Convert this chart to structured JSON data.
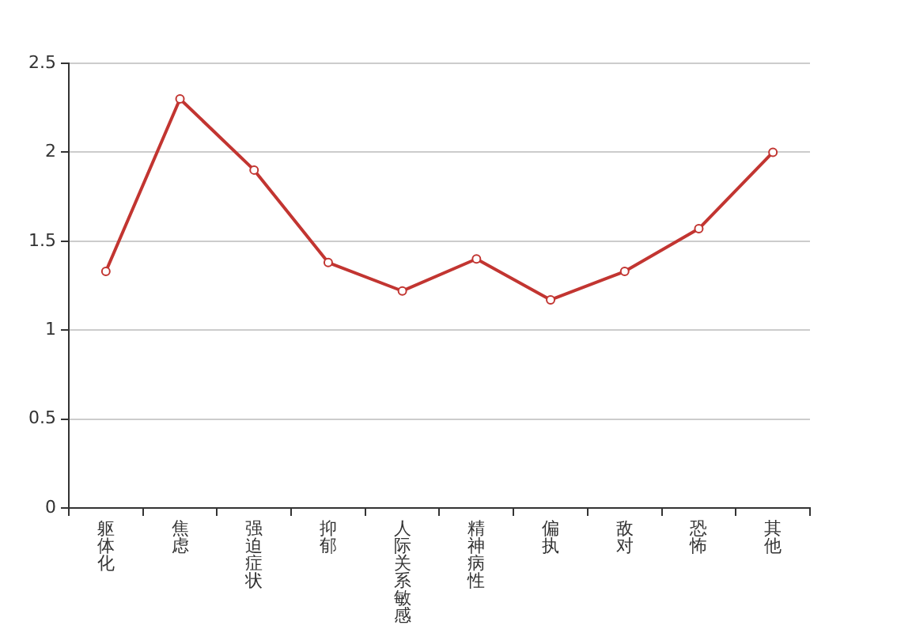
{
  "chart_data": {
    "type": "line",
    "categories": [
      "躯体化",
      "焦虑",
      "强迫症状",
      "抑郁",
      "人际关系敏感",
      "精神病性",
      "偏执",
      "敌对",
      "恐怖",
      "其他"
    ],
    "series": [
      {
        "color": "#c23531",
        "values": [
          1.33,
          2.3,
          1.9,
          1.38,
          1.22,
          1.4,
          1.17,
          1.33,
          1.57,
          2.0
        ]
      }
    ],
    "ylim": [
      0,
      2.5
    ],
    "yticks": [
      0,
      0.5,
      1,
      1.5,
      2,
      2.5
    ],
    "grid": "y",
    "legend": false,
    "marker": "circle",
    "line_style": "solid"
  }
}
